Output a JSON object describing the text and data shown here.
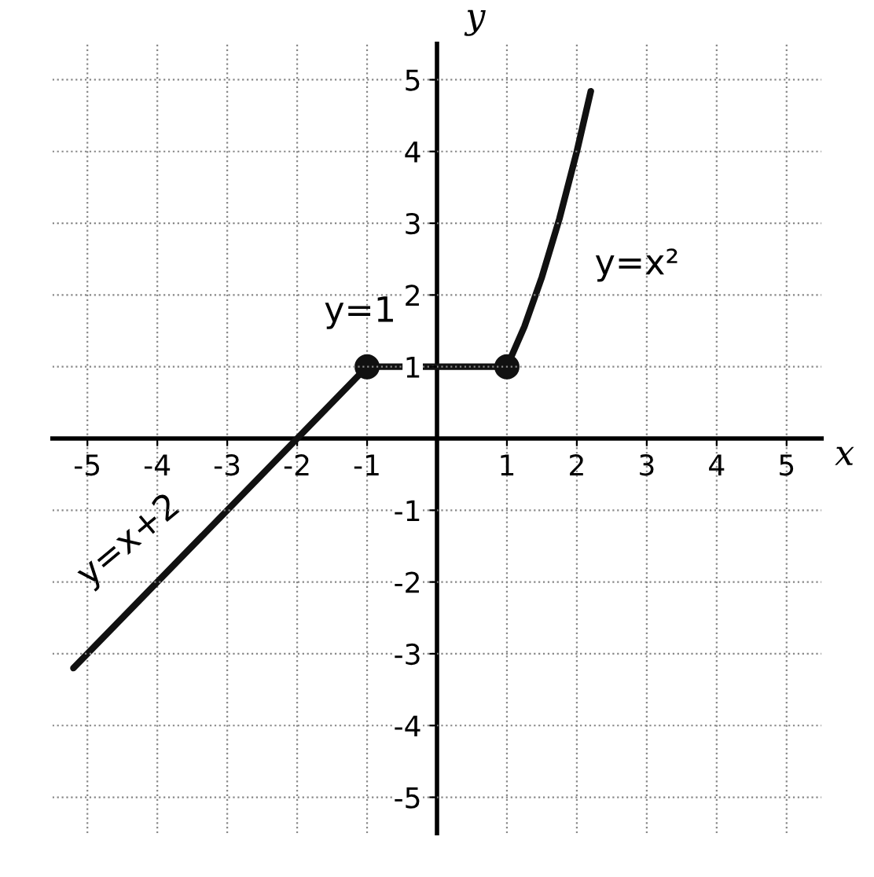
{
  "chart_data": {
    "type": "line",
    "xlabel": "x",
    "ylabel": "y",
    "series": [
      {
        "color": "#111111",
        "x": [
          -5.2,
          -1
        ],
        "values": [
          -3.2,
          1
        ]
      },
      {
        "color": "#111111",
        "x": [
          -1,
          1
        ],
        "values": [
          1,
          1
        ]
      },
      {
        "color": "#111111",
        "x": [
          1,
          1.25,
          1.5,
          1.75,
          2,
          2.2
        ],
        "values": [
          1,
          1.56,
          2.25,
          3.06,
          4,
          4.84
        ]
      },
      {
        "type": "scatter",
        "color": "#111111",
        "x": [
          -1,
          1
        ],
        "values": [
          1,
          1
        ],
        "marker": "circle"
      }
    ],
    "annotations": [
      "y=x+2",
      "y=1",
      "y=x²"
    ],
    "xlim": [
      -5.5,
      5.5
    ],
    "ylim": [
      -5.5,
      5.5
    ],
    "xticks": [
      -5,
      -4,
      -3,
      -2,
      -1,
      1,
      2,
      3,
      4,
      5
    ],
    "yticks": [
      -5,
      -4,
      -3,
      -2,
      -1,
      1,
      2,
      3,
      4,
      5
    ],
    "grid": true,
    "marker": "none",
    "line_style": "solid"
  }
}
